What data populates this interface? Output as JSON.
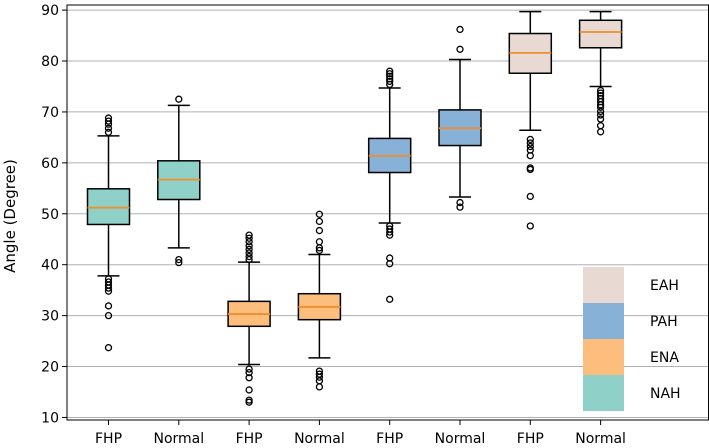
{
  "chart_data": {
    "type": "boxplot",
    "title": "",
    "xlabel": "",
    "ylabel": "Angle (Degree)",
    "ylim": [
      9.5,
      91
    ],
    "yticks": [
      10,
      20,
      30,
      40,
      50,
      60,
      70,
      80,
      90
    ],
    "grid": "horizontal",
    "legend_position": "bottom-right",
    "categories": [
      "FHP",
      "Normal",
      "FHP",
      "Normal",
      "FHP",
      "Normal",
      "FHP",
      "Normal"
    ],
    "legend": [
      {
        "label": "EAH",
        "color": "#e8dad3"
      },
      {
        "label": "PAH",
        "color": "#87b1d6"
      },
      {
        "label": "ENA",
        "color": "#fdbd7d"
      },
      {
        "label": "NAH",
        "color": "#8fd1c8"
      }
    ],
    "boxes": [
      {
        "label": "FHP",
        "group": "NAH",
        "color": "#8fd1c8",
        "whisker_low": 37.8,
        "q1": 47.9,
        "median": 51.2,
        "q3": 54.9,
        "whisker_high": 65.3,
        "outliers": [
          68.8,
          68.2,
          67.6,
          66.8,
          66.0,
          37.2,
          36.6,
          36.0,
          35.4,
          34.8,
          31.9,
          30.0,
          23.7
        ]
      },
      {
        "label": "Normal",
        "group": "NAH",
        "color": "#8fd1c8",
        "whisker_low": 43.3,
        "q1": 52.8,
        "median": 56.7,
        "q3": 60.4,
        "whisker_high": 71.3,
        "outliers": [
          72.5,
          41.0,
          40.4
        ]
      },
      {
        "label": "FHP",
        "group": "ENA",
        "color": "#fdbd7d",
        "whisker_low": 20.4,
        "q1": 27.9,
        "median": 30.3,
        "q3": 32.8,
        "whisker_high": 40.5,
        "outliers": [
          45.8,
          45.2,
          44.5,
          43.7,
          43.0,
          42.3,
          41.6,
          41.0,
          19.5,
          18.8,
          17.8,
          15.4,
          13.4,
          13.0
        ]
      },
      {
        "label": "Normal",
        "group": "ENA",
        "color": "#fdbd7d",
        "whisker_low": 21.7,
        "q1": 29.2,
        "median": 31.7,
        "q3": 34.3,
        "whisker_high": 42.0,
        "outliers": [
          49.9,
          48.5,
          46.7,
          44.5,
          43.3,
          42.8,
          19.1,
          18.5,
          17.9,
          17.2,
          16.0
        ]
      },
      {
        "label": "FHP",
        "group": "PAH",
        "color": "#87b1d6",
        "whisker_low": 48.2,
        "q1": 58.1,
        "median": 61.4,
        "q3": 64.8,
        "whisker_high": 74.7,
        "outliers": [
          78.0,
          77.5,
          77.0,
          76.5,
          76.0,
          75.4,
          47.6,
          47.0,
          46.4,
          45.8,
          41.3,
          40.2,
          33.2
        ]
      },
      {
        "label": "Normal",
        "group": "PAH",
        "color": "#87b1d6",
        "whisker_low": 53.3,
        "q1": 63.4,
        "median": 66.8,
        "q3": 70.4,
        "whisker_high": 80.3,
        "outliers": [
          86.2,
          82.3,
          52.2,
          51.3
        ]
      },
      {
        "label": "FHP",
        "group": "EAH",
        "color": "#e8dad3",
        "whisker_low": 66.4,
        "q1": 77.6,
        "median": 81.6,
        "q3": 85.4,
        "whisker_high": 89.7,
        "outliers": [
          64.6,
          63.9,
          63.2,
          62.5,
          61.4,
          59.0,
          58.7,
          53.4,
          47.6
        ]
      },
      {
        "label": "Normal",
        "group": "EAH",
        "color": "#e8dad3",
        "whisker_low": 75.0,
        "q1": 82.6,
        "median": 85.7,
        "q3": 88.0,
        "whisker_high": 89.7,
        "outliers": [
          74.2,
          73.7,
          73.2,
          72.6,
          72.0,
          71.4,
          70.9,
          70.1,
          69.4,
          68.6,
          67.3,
          66.1
        ]
      }
    ]
  }
}
